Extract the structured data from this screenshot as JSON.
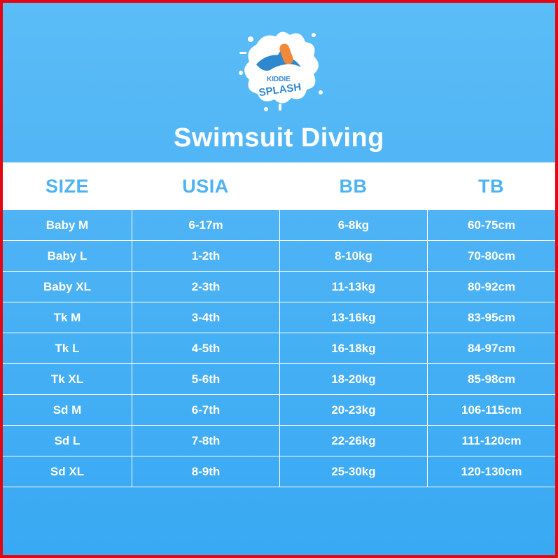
{
  "logo": {
    "line1": "KIDDIE",
    "line2": "SPLASH",
    "colors": {
      "splash": "#ffffff",
      "dolphin": "#2e88cf",
      "board": "#f08a3a"
    }
  },
  "title": "Swimsuit Diving",
  "table": {
    "headers": [
      "SIZE",
      "USIA",
      "BB",
      "TB"
    ],
    "rows": [
      [
        "Baby M",
        "6-17m",
        "6-8kg",
        "60-75cm"
      ],
      [
        "Baby L",
        "1-2th",
        "8-10kg",
        "70-80cm"
      ],
      [
        "Baby XL",
        "2-3th",
        "11-13kg",
        "80-92cm"
      ],
      [
        "Tk M",
        "3-4th",
        "13-16kg",
        "83-95cm"
      ],
      [
        "Tk L",
        "4-5th",
        "16-18kg",
        "84-97cm"
      ],
      [
        "Tk XL",
        "5-6th",
        "18-20kg",
        "85-98cm"
      ],
      [
        "Sd M",
        "6-7th",
        "20-23kg",
        "106-115cm"
      ],
      [
        "Sd L",
        "7-8th",
        "22-26kg",
        "111-120cm"
      ],
      [
        "Sd XL",
        "8-9th",
        "25-30kg",
        "120-130cm"
      ]
    ]
  },
  "colors": {
    "border": "#e30613",
    "background": "#4fb4f5",
    "header_text": "#4db3f3",
    "text": "#ffffff"
  }
}
